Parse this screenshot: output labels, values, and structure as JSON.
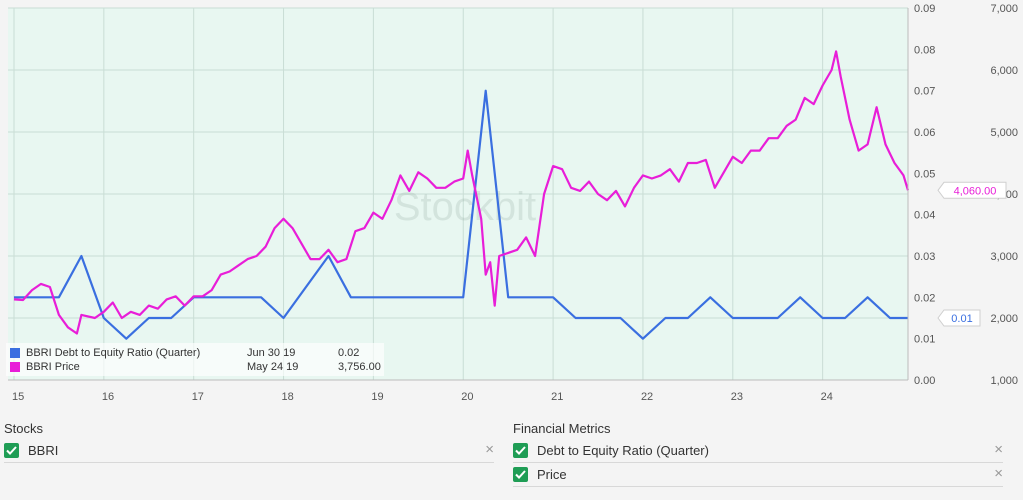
{
  "chart_data": {
    "type": "line",
    "x_axis": {
      "tick_labels": [
        "15",
        "16",
        "17",
        "18",
        "19",
        "20",
        "21",
        "22",
        "23",
        "24"
      ],
      "range": [
        2015,
        2024.95
      ]
    },
    "y_left": {
      "tick_labels": [
        "0.00",
        "0.01",
        "0.02",
        "0.03",
        "0.04",
        "0.05",
        "0.06",
        "0.07",
        "0.08",
        "0.09"
      ],
      "range": [
        0,
        0.09
      ]
    },
    "y_right": {
      "tick_labels": [
        "1,000",
        "2,000",
        "3,000",
        "4,000",
        "5,000",
        "6,000",
        "7,000"
      ],
      "range": [
        1000,
        7000
      ]
    },
    "grid": true,
    "watermark": "Stockbit",
    "series": [
      {
        "name": "BBRI Debt to Equity Ratio (Quarter)",
        "axis": "left",
        "color": "#3a6fe0",
        "date": "Jun 30 19",
        "value": "0.02",
        "end_label": "0.01",
        "points": [
          [
            2015.0,
            0.02
          ],
          [
            2015.5,
            0.02
          ],
          [
            2015.75,
            0.03
          ],
          [
            2016.0,
            0.015
          ],
          [
            2016.25,
            0.01
          ],
          [
            2016.5,
            0.015
          ],
          [
            2016.75,
            0.015
          ],
          [
            2017.0,
            0.02
          ],
          [
            2017.75,
            0.02
          ],
          [
            2018.0,
            0.015
          ],
          [
            2018.5,
            0.03
          ],
          [
            2018.75,
            0.02
          ],
          [
            2020.0,
            0.02
          ],
          [
            2020.25,
            0.07
          ],
          [
            2020.5,
            0.02
          ],
          [
            2021.0,
            0.02
          ],
          [
            2021.25,
            0.015
          ],
          [
            2021.75,
            0.015
          ],
          [
            2022.0,
            0.01
          ],
          [
            2022.25,
            0.015
          ],
          [
            2022.5,
            0.015
          ],
          [
            2022.75,
            0.02
          ],
          [
            2023.0,
            0.015
          ],
          [
            2023.5,
            0.015
          ],
          [
            2023.75,
            0.02
          ],
          [
            2024.0,
            0.015
          ],
          [
            2024.25,
            0.015
          ],
          [
            2024.5,
            0.02
          ],
          [
            2024.75,
            0.015
          ],
          [
            2024.95,
            0.015
          ]
        ]
      },
      {
        "name": "BBRI Price",
        "axis": "right",
        "color": "#e81ed8",
        "date": "May 24 19",
        "value": "3,756.00",
        "end_label": "4,060.00",
        "points": [
          [
            2015.0,
            2300
          ],
          [
            2015.1,
            2290
          ],
          [
            2015.2,
            2450
          ],
          [
            2015.3,
            2550
          ],
          [
            2015.4,
            2500
          ],
          [
            2015.5,
            2050
          ],
          [
            2015.6,
            1850
          ],
          [
            2015.7,
            1750
          ],
          [
            2015.75,
            2050
          ],
          [
            2015.9,
            2000
          ],
          [
            2016.0,
            2100
          ],
          [
            2016.1,
            2250
          ],
          [
            2016.2,
            2000
          ],
          [
            2016.3,
            2100
          ],
          [
            2016.4,
            2050
          ],
          [
            2016.5,
            2200
          ],
          [
            2016.6,
            2150
          ],
          [
            2016.7,
            2300
          ],
          [
            2016.8,
            2350
          ],
          [
            2016.9,
            2200
          ],
          [
            2017.0,
            2350
          ],
          [
            2017.1,
            2350
          ],
          [
            2017.2,
            2450
          ],
          [
            2017.3,
            2700
          ],
          [
            2017.4,
            2750
          ],
          [
            2017.5,
            2850
          ],
          [
            2017.6,
            2950
          ],
          [
            2017.7,
            3000
          ],
          [
            2017.8,
            3150
          ],
          [
            2017.9,
            3450
          ],
          [
            2018.0,
            3600
          ],
          [
            2018.1,
            3450
          ],
          [
            2018.2,
            3200
          ],
          [
            2018.3,
            2950
          ],
          [
            2018.4,
            2950
          ],
          [
            2018.5,
            3100
          ],
          [
            2018.6,
            2900
          ],
          [
            2018.7,
            2950
          ],
          [
            2018.8,
            3400
          ],
          [
            2018.9,
            3450
          ],
          [
            2019.0,
            3700
          ],
          [
            2019.1,
            3600
          ],
          [
            2019.2,
            3900
          ],
          [
            2019.3,
            4300
          ],
          [
            2019.4,
            4050
          ],
          [
            2019.5,
            4350
          ],
          [
            2019.6,
            4250
          ],
          [
            2019.7,
            4100
          ],
          [
            2019.8,
            4100
          ],
          [
            2019.9,
            4200
          ],
          [
            2020.0,
            4250
          ],
          [
            2020.05,
            4700
          ],
          [
            2020.1,
            4300
          ],
          [
            2020.2,
            3600
          ],
          [
            2020.25,
            2700
          ],
          [
            2020.3,
            2900
          ],
          [
            2020.35,
            2200
          ],
          [
            2020.4,
            3000
          ],
          [
            2020.5,
            3050
          ],
          [
            2020.6,
            3100
          ],
          [
            2020.7,
            3300
          ],
          [
            2020.8,
            3000
          ],
          [
            2020.9,
            4000
          ],
          [
            2021.0,
            4450
          ],
          [
            2021.1,
            4400
          ],
          [
            2021.2,
            4100
          ],
          [
            2021.3,
            4050
          ],
          [
            2021.4,
            4200
          ],
          [
            2021.5,
            4000
          ],
          [
            2021.6,
            3900
          ],
          [
            2021.7,
            4050
          ],
          [
            2021.8,
            3800
          ],
          [
            2021.9,
            4100
          ],
          [
            2022.0,
            4300
          ],
          [
            2022.1,
            4250
          ],
          [
            2022.2,
            4300
          ],
          [
            2022.3,
            4400
          ],
          [
            2022.4,
            4200
          ],
          [
            2022.5,
            4500
          ],
          [
            2022.6,
            4500
          ],
          [
            2022.7,
            4550
          ],
          [
            2022.8,
            4100
          ],
          [
            2022.9,
            4350
          ],
          [
            2023.0,
            4600
          ],
          [
            2023.1,
            4500
          ],
          [
            2023.2,
            4700
          ],
          [
            2023.3,
            4700
          ],
          [
            2023.4,
            4900
          ],
          [
            2023.5,
            4900
          ],
          [
            2023.6,
            5100
          ],
          [
            2023.7,
            5200
          ],
          [
            2023.8,
            5550
          ],
          [
            2023.9,
            5450
          ],
          [
            2024.0,
            5750
          ],
          [
            2024.1,
            6000
          ],
          [
            2024.15,
            6300
          ],
          [
            2024.2,
            5900
          ],
          [
            2024.3,
            5200
          ],
          [
            2024.4,
            4700
          ],
          [
            2024.5,
            4800
          ],
          [
            2024.6,
            5400
          ],
          [
            2024.7,
            4800
          ],
          [
            2024.8,
            4500
          ],
          [
            2024.9,
            4300
          ],
          [
            2024.95,
            4060
          ]
        ]
      }
    ]
  },
  "stocks_panel": {
    "title": "Stocks",
    "items": [
      {
        "label": "BBRI",
        "remove": "×"
      }
    ]
  },
  "metrics_panel": {
    "title": "Financial Metrics",
    "items": [
      {
        "label": "Debt to Equity Ratio (Quarter)",
        "remove": "×"
      },
      {
        "label": "Price",
        "remove": "×"
      }
    ]
  }
}
